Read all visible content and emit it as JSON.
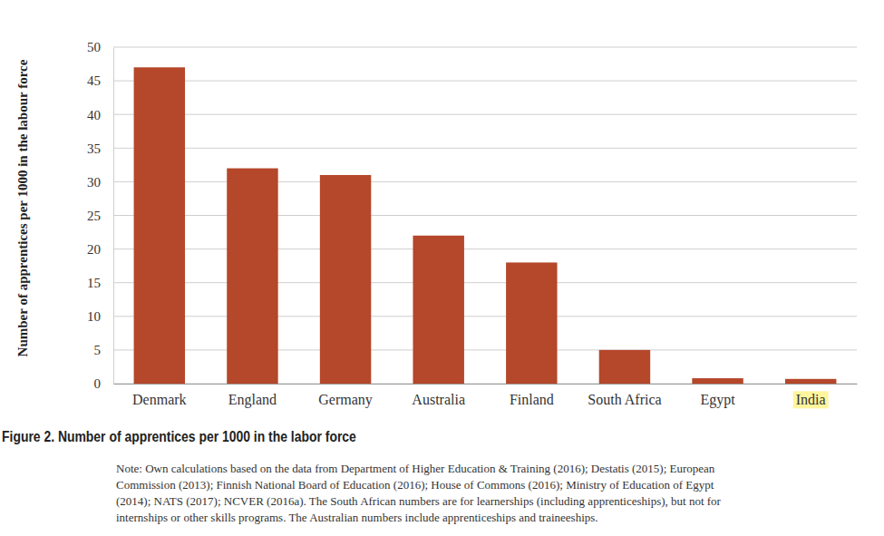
{
  "chart_data": {
    "type": "bar",
    "title": "Figure 2. Number of apprentices per 1000 in the labor force",
    "y_label": "Number of apprentices per 1000 in the labour force",
    "note": [
      "Note: Own calculations based on the data from Department of Higher Education & Training (2016); Destatis (2015); European",
      "Commission (2013); Finnish National Board of Education (2016); House of Commons (2016); Ministry of Education of Egypt",
      "(2014); NATS (2017); NCVER (2016a). The South African numbers are for learnerships (including apprenticeships), but not for",
      "internships or other skills programs. The Australian numbers include apprenticeships and traineeships."
    ],
    "categories": [
      "Denmark",
      "England",
      "Germany",
      "Australia",
      "Finland",
      "South Africa",
      "Egypt",
      "India"
    ],
    "values": [
      47,
      32,
      31,
      22,
      18,
      5,
      0.8,
      0.7
    ],
    "color": "#b5472a",
    "ylim": [
      0,
      50
    ],
    "yticks": [
      0,
      5,
      10,
      15,
      20,
      25,
      30,
      35,
      40,
      45,
      50
    ],
    "grid": true
  }
}
